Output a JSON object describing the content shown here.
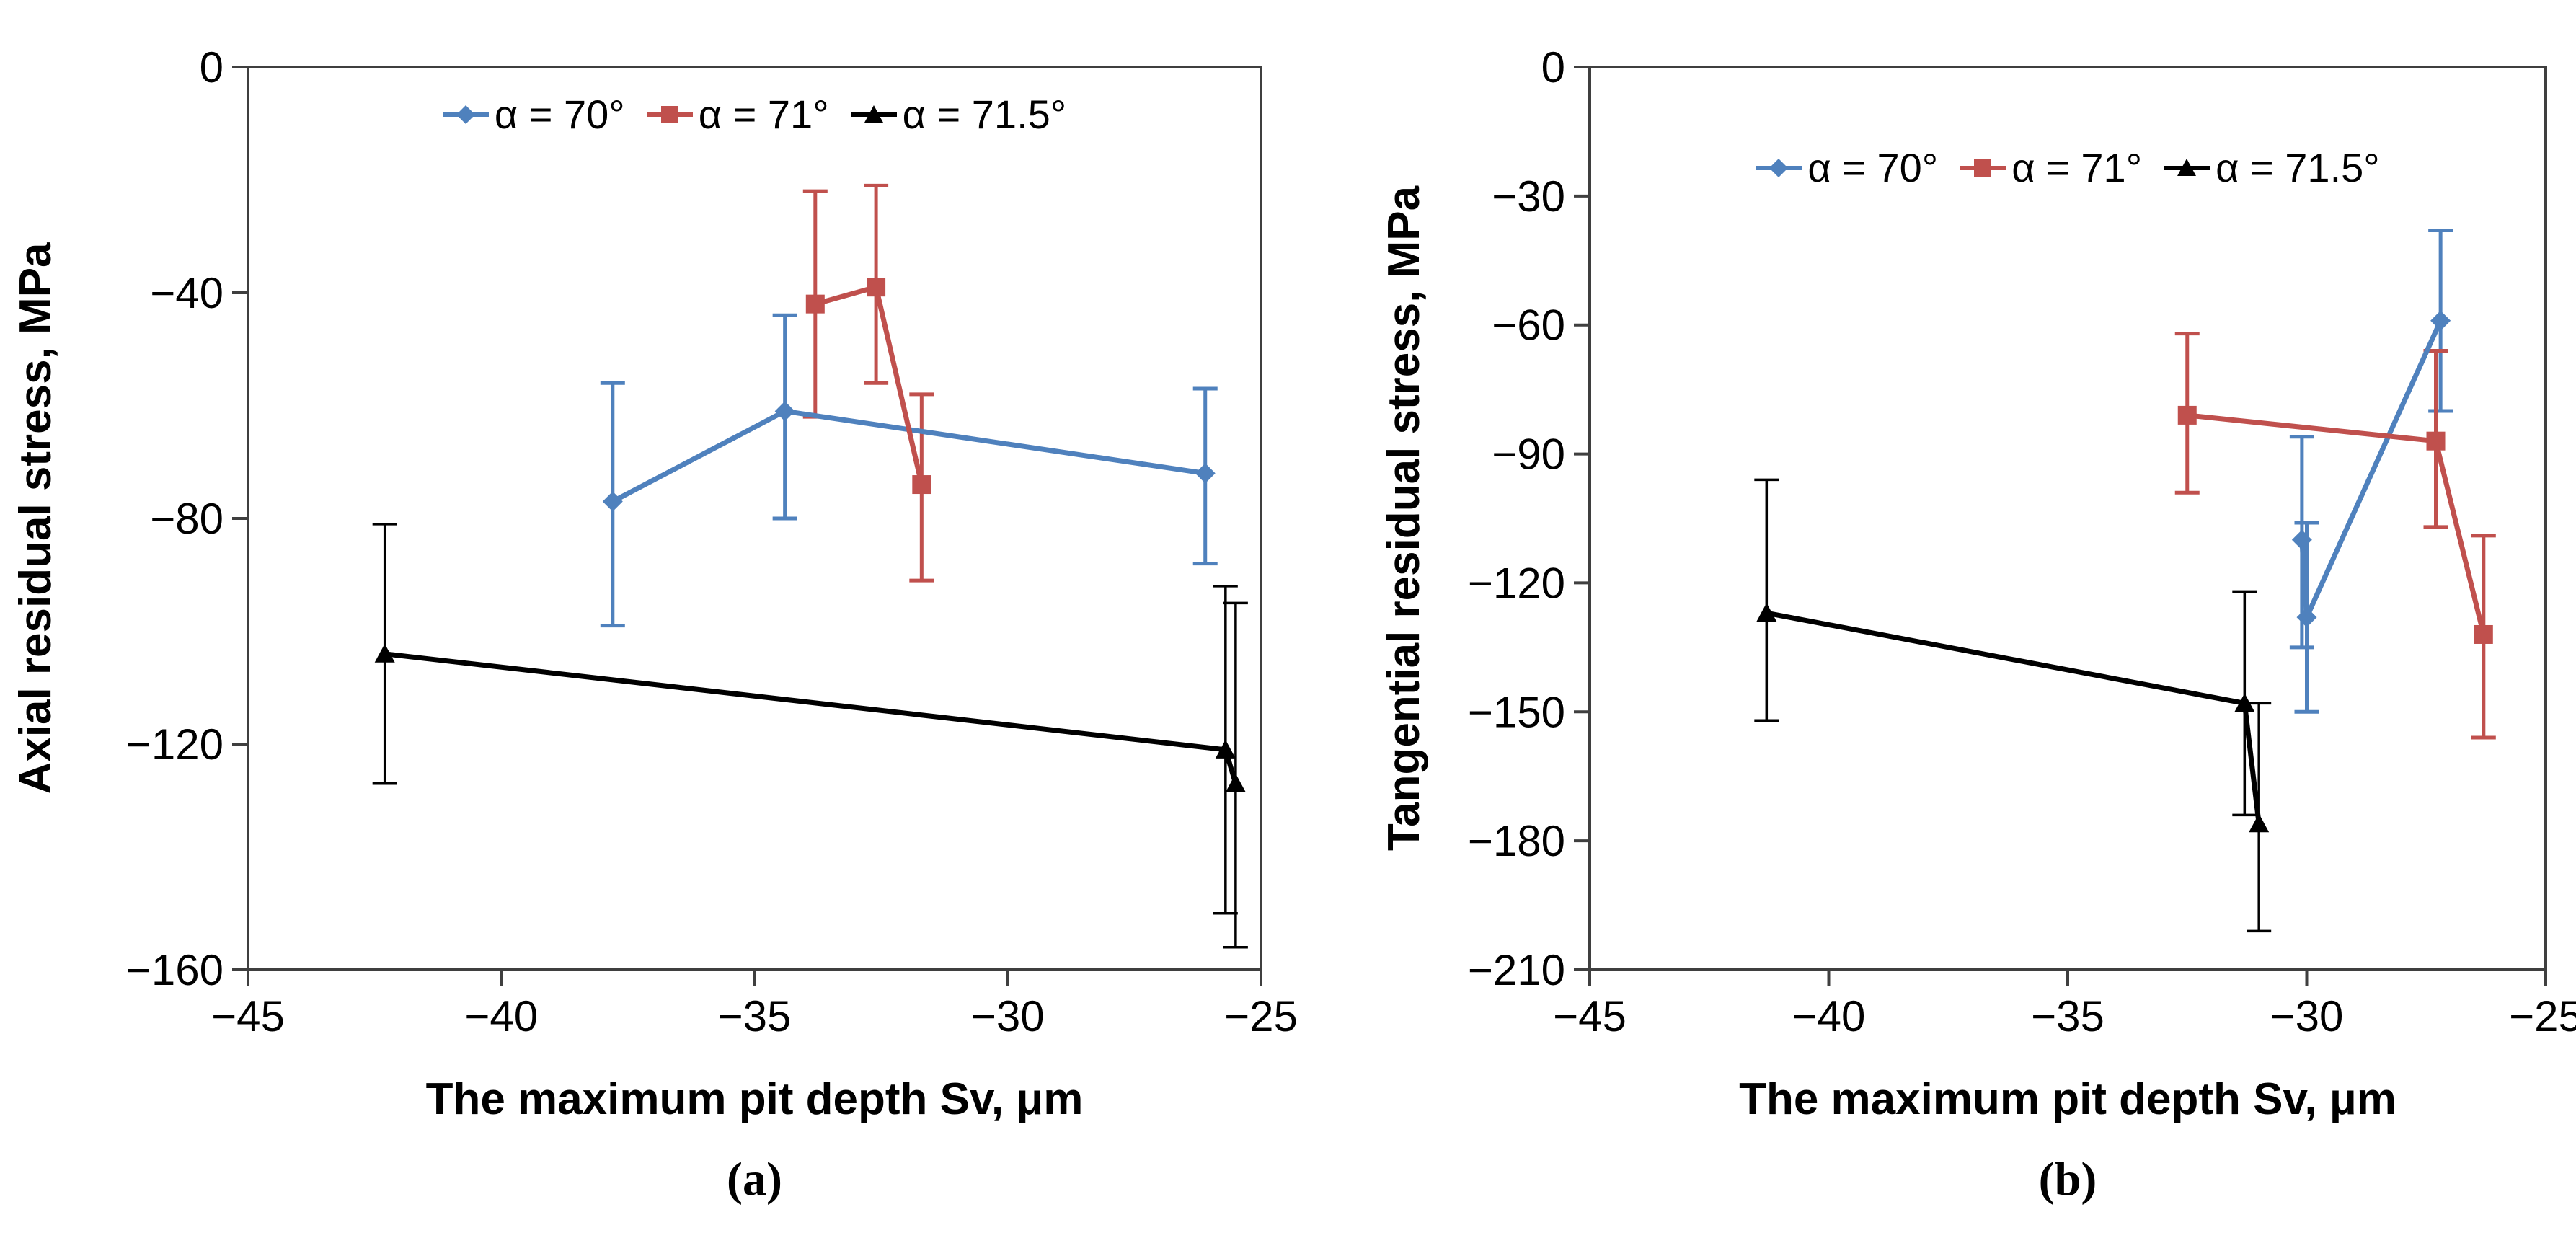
{
  "chart_data": [
    {
      "type": "line",
      "panel": "a",
      "caption": "(a)",
      "xlabel": "The maximum pit depth Sv, μm",
      "ylabel": "Axial residual stress, MPa",
      "xlim": [
        -45,
        -25
      ],
      "ylim": [
        -160,
        0
      ],
      "xticks": [
        -45,
        -40,
        -35,
        -30,
        -25
      ],
      "yticks": [
        0,
        -40,
        -80,
        -120,
        -160
      ],
      "grid": false,
      "legend_position": "top-inside",
      "series": [
        {
          "name": "α = 70°",
          "color": "#4f81bd",
          "marker": "diamond",
          "x": [
            -37.8,
            -34.4,
            -26.1
          ],
          "y": [
            -77,
            -61,
            -72
          ],
          "y_err_low": [
            -99,
            -80,
            -88
          ],
          "y_err_high": [
            -56,
            -44,
            -57
          ]
        },
        {
          "name": "α = 71°",
          "color": "#c0504d",
          "marker": "square",
          "x": [
            -33.8,
            -32.6,
            -31.7
          ],
          "y": [
            -42,
            -39,
            -74
          ],
          "y_err_low": [
            -62,
            -56,
            -91
          ],
          "y_err_high": [
            -22,
            -21,
            -58
          ]
        },
        {
          "name": "α = 71.5°",
          "color": "#000000",
          "marker": "triangle",
          "x": [
            -42.3,
            -25.7,
            -25.5
          ],
          "y": [
            -104,
            -121,
            -127
          ],
          "y_err_low": [
            -127,
            -150,
            -156
          ],
          "y_err_high": [
            -81,
            -92,
            -95
          ]
        }
      ]
    },
    {
      "type": "line",
      "panel": "b",
      "caption": "(b)",
      "xlabel": "The maximum pit depth Sv, μm",
      "ylabel": "Tangential residual stress, MPa",
      "xlim": [
        -45,
        -25
      ],
      "ylim": [
        -210,
        0
      ],
      "xticks": [
        -45,
        -40,
        -35,
        -30,
        -25
      ],
      "yticks": [
        0,
        -30,
        -60,
        -90,
        -120,
        -150,
        -180,
        -210
      ],
      "grid": false,
      "legend_position": "top-inside",
      "series": [
        {
          "name": "α = 70°",
          "color": "#4f81bd",
          "marker": "diamond",
          "x": [
            -30.1,
            -30,
            -27.2
          ],
          "y": [
            -110,
            -128,
            -59
          ],
          "y_err_low": [
            -135,
            -150,
            -80
          ],
          "y_err_high": [
            -86,
            -106,
            -38
          ]
        },
        {
          "name": "α = 71°",
          "color": "#c0504d",
          "marker": "square",
          "x": [
            -32.5,
            -27.3,
            -26.3
          ],
          "y": [
            -81,
            -87,
            -132
          ],
          "y_err_low": [
            -99,
            -107,
            -156
          ],
          "y_err_high": [
            -62,
            -66,
            -109
          ]
        },
        {
          "name": "α = 71.5°",
          "color": "#000000",
          "marker": "triangle",
          "x": [
            -41.3,
            -31.3,
            -31
          ],
          "y": [
            -127,
            -148,
            -176
          ],
          "y_err_low": [
            -152,
            -174,
            -201
          ],
          "y_err_high": [
            -96,
            -122,
            -148
          ]
        }
      ]
    }
  ],
  "captions": {
    "a": "(a)",
    "b": "(b)"
  }
}
